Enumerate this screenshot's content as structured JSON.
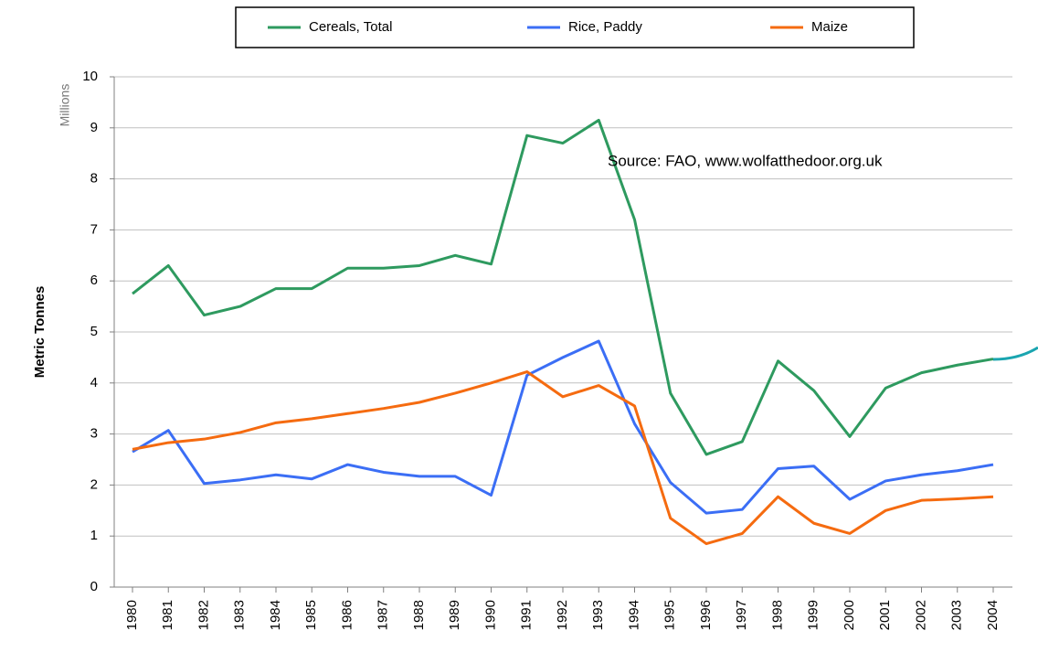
{
  "chart_data": {
    "type": "line",
    "ylabel": "Metric Tonnes",
    "yunit": "Millions",
    "annotation": "Source: FAO, www.wolfatthedoor.org.uk",
    "categories": [
      "1980",
      "1981",
      "1982",
      "1983",
      "1984",
      "1985",
      "1986",
      "1987",
      "1988",
      "1989",
      "1990",
      "1991",
      "1992",
      "1993",
      "1994",
      "1995",
      "1996",
      "1997",
      "1998",
      "1999",
      "2000",
      "2001",
      "2002",
      "2003",
      "2004"
    ],
    "series": [
      {
        "name": "Cereals, Total",
        "color": "#2e9a5f",
        "values": [
          5.75,
          6.3,
          5.33,
          5.5,
          5.85,
          5.85,
          6.25,
          6.25,
          6.3,
          6.5,
          6.33,
          8.85,
          8.7,
          9.15,
          7.2,
          3.8,
          2.6,
          2.85,
          4.43,
          3.85,
          2.95,
          3.9,
          4.2,
          4.35,
          4.47
        ]
      },
      {
        "name": "Rice, Paddy",
        "color": "#3b6ef5",
        "values": [
          2.65,
          3.07,
          2.03,
          2.1,
          2.2,
          2.12,
          2.4,
          2.25,
          2.17,
          2.17,
          1.8,
          4.15,
          4.5,
          4.82,
          3.2,
          2.05,
          1.45,
          1.52,
          2.32,
          2.37,
          1.72,
          2.08,
          2.2,
          2.28,
          2.4
        ]
      },
      {
        "name": "Maize",
        "color": "#f56b10",
        "values": [
          2.7,
          2.83,
          2.9,
          3.03,
          3.22,
          3.3,
          3.4,
          3.5,
          3.62,
          3.8,
          4.0,
          4.22,
          3.73,
          3.95,
          3.55,
          1.35,
          0.85,
          1.05,
          1.77,
          1.25,
          1.05,
          1.5,
          1.7,
          1.73,
          1.77
        ]
      }
    ],
    "ylim": [
      0,
      10
    ],
    "yticks": [
      0,
      1,
      2,
      3,
      4,
      5,
      6,
      7,
      8,
      9,
      10
    ],
    "grid": true,
    "legend": "top"
  }
}
